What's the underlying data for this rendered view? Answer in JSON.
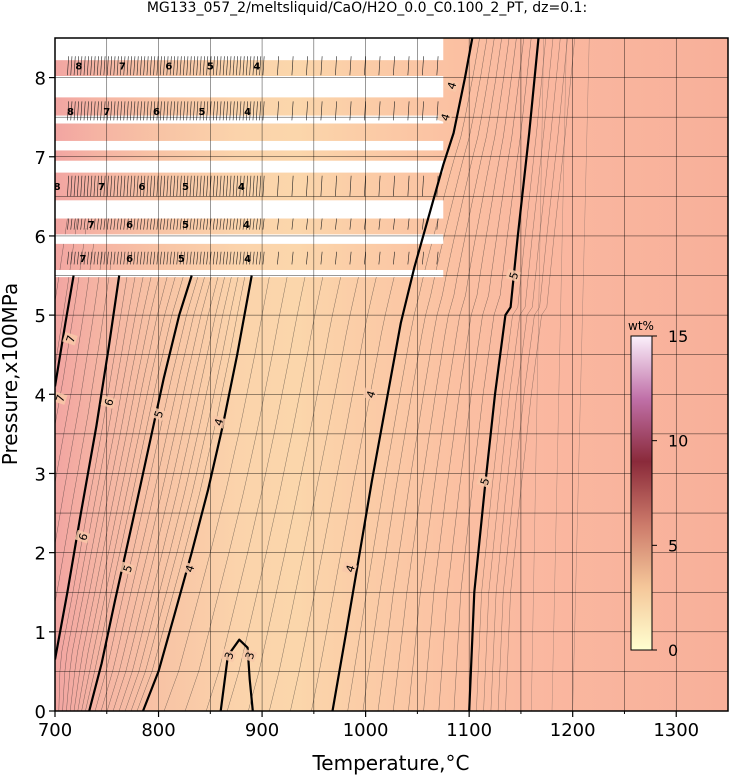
{
  "chart_data": {
    "type": "heatmap",
    "title": "MG133_057_2/meltsliquid/CaO/H2O_0.0_C0.100_2_PT, dz=0.1:",
    "xlabel": "Temperature,°C",
    "ylabel": "Pressure,x100MPa",
    "xlim": [
      700,
      1350
    ],
    "ylim": [
      0,
      8.5
    ],
    "xticks": [
      "700",
      "800",
      "900",
      "1000",
      "1100",
      "1200",
      "1300"
    ],
    "yticks": [
      "0",
      "1",
      "2",
      "3",
      "4",
      "5",
      "6",
      "7",
      "8"
    ],
    "grid": true,
    "colorbar": {
      "label": "wt%",
      "range": [
        0,
        15
      ],
      "ticks": [
        "0",
        "5",
        "10",
        "15"
      ],
      "colors": [
        "#ffffd0",
        "#f5c79a",
        "#cc7a6a",
        "#8a2a3a",
        "#c070a8",
        "#fbf0fb"
      ]
    },
    "contours": [
      {
        "label": "7",
        "points": [
          [
            700,
            4.1
          ],
          [
            710,
            4.9
          ],
          [
            718,
            5.5
          ]
        ]
      },
      {
        "label": "6",
        "points": [
          [
            700,
            0.65
          ],
          [
            712,
            1.5
          ],
          [
            725,
            2.5
          ],
          [
            740,
            3.6
          ],
          [
            752,
            4.6
          ],
          [
            762,
            5.5
          ]
        ]
      },
      {
        "label": "5",
        "points": [
          [
            733,
            0
          ],
          [
            745,
            0.6
          ],
          [
            758,
            1.4
          ],
          [
            775,
            2.4
          ],
          [
            790,
            3.3
          ],
          [
            805,
            4.2
          ],
          [
            820,
            5.0
          ],
          [
            832,
            5.5
          ]
        ]
      },
      {
        "label": "4",
        "points": [
          [
            785,
            0
          ],
          [
            800,
            0.5
          ],
          [
            815,
            1.2
          ],
          [
            832,
            2.0
          ],
          [
            848,
            2.8
          ],
          [
            862,
            3.6
          ],
          [
            876,
            4.5
          ],
          [
            890,
            5.5
          ]
        ]
      },
      {
        "label": "3",
        "points": [
          [
            860,
            0
          ],
          [
            863,
            0.3
          ],
          [
            867,
            0.7
          ],
          [
            878,
            0.9
          ],
          [
            886,
            0.8
          ],
          [
            888,
            0.4
          ],
          [
            891,
            0
          ]
        ]
      },
      {
        "label": "4",
        "points": [
          [
            968,
            0
          ],
          [
            980,
            0.9
          ],
          [
            993,
            1.9
          ],
          [
            1006,
            2.9
          ],
          [
            1020,
            3.9
          ],
          [
            1034,
            4.9
          ],
          [
            1047,
            5.6
          ],
          [
            1075,
            6.9
          ],
          [
            1085,
            7.3
          ],
          [
            1096,
            8.0
          ],
          [
            1103,
            8.5
          ]
        ]
      },
      {
        "label": "5",
        "points": [
          [
            1100,
            0
          ],
          [
            1105,
            1.5
          ],
          [
            1115,
            2.8
          ],
          [
            1125,
            4.0
          ],
          [
            1135,
            5.0
          ],
          [
            1140,
            5.1
          ],
          [
            1147,
            6.0
          ],
          [
            1158,
            7.3
          ],
          [
            1167,
            8.5
          ]
        ]
      }
    ],
    "contour_labels": [
      {
        "text": "7",
        "at": [
          715,
          4.7
        ]
      },
      {
        "text": "7",
        "at": [
          705,
          3.95
        ]
      },
      {
        "text": "6",
        "at": [
          752,
          3.9
        ]
      },
      {
        "text": "6",
        "at": [
          727,
          2.2
        ]
      },
      {
        "text": "5",
        "at": [
          800,
          3.75
        ]
      },
      {
        "text": "5",
        "at": [
          770,
          1.8
        ]
      },
      {
        "text": "4",
        "at": [
          858,
          3.65
        ]
      },
      {
        "text": "4",
        "at": [
          830,
          1.8
        ]
      },
      {
        "text": "3",
        "at": [
          868,
          0.7
        ]
      },
      {
        "text": "3",
        "at": [
          888,
          0.7
        ]
      },
      {
        "text": "4",
        "at": [
          1005,
          4.0
        ]
      },
      {
        "text": "4",
        "at": [
          985,
          1.8
        ]
      },
      {
        "text": "4",
        "at": [
          1083,
          7.9
        ]
      },
      {
        "text": "4",
        "at": [
          1077,
          7.5
        ]
      },
      {
        "text": "5",
        "at": [
          1143,
          5.5
        ]
      },
      {
        "text": "5",
        "at": [
          1115,
          2.9
        ]
      }
    ],
    "missing_bands": [
      [
        8.22,
        8.65
      ],
      [
        7.75,
        8.02
      ],
      [
        7.42,
        7.52
      ],
      [
        7.08,
        7.2
      ],
      [
        6.8,
        6.95
      ],
      [
        6.22,
        6.45
      ],
      [
        5.9,
        6.02
      ],
      [
        5.48,
        5.57
      ]
    ],
    "missing_band_xmax": 1075,
    "band_labels": [
      {
        "y": 8.15,
        "items": [
          [
            "8",
            723
          ],
          [
            "7",
            765
          ],
          [
            "6",
            810
          ],
          [
            "5",
            850
          ],
          [
            "4",
            895
          ]
        ]
      },
      {
        "y": 7.58,
        "items": [
          [
            "8",
            715
          ],
          [
            "7",
            750
          ],
          [
            "6",
            798
          ],
          [
            "5",
            842
          ],
          [
            "4",
            886
          ]
        ]
      },
      {
        "y": 6.63,
        "items": [
          [
            "8",
            702
          ],
          [
            "7",
            745
          ],
          [
            "6",
            784
          ],
          [
            "5",
            826
          ],
          [
            "4",
            880
          ]
        ]
      },
      {
        "y": 6.15,
        "items": [
          [
            "7",
            735
          ],
          [
            "6",
            772
          ],
          [
            "5",
            826
          ],
          [
            "4",
            885
          ]
        ]
      },
      {
        "y": 5.72,
        "items": [
          [
            "7",
            727
          ],
          [
            "6",
            772
          ],
          [
            "5",
            822
          ],
          [
            "4",
            886
          ]
        ]
      }
    ]
  }
}
